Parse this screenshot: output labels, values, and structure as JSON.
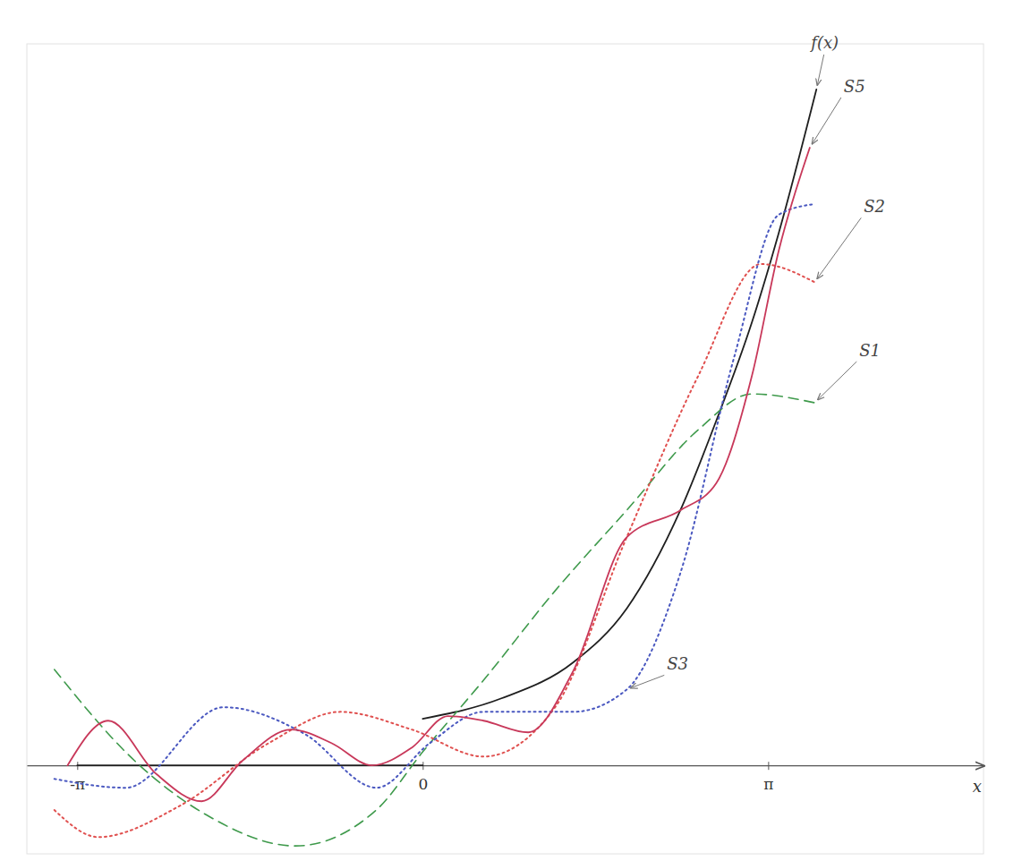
{
  "chart_data": {
    "type": "line",
    "x_label": "x",
    "xlim": [
      -3.6,
      5.1
    ],
    "xticks": [
      {
        "value": -3.14159,
        "label": "-π"
      },
      0,
      {
        "value": 3.14159,
        "label": "π"
      }
    ],
    "ylim": [
      -1.9,
      15.5
    ],
    "tick_labels": "x",
    "grid": false,
    "series": [
      {
        "name": "f(x)",
        "color": "#1f1f1f",
        "line_style": "solid",
        "x": [
          -3.14159,
          0,
          0,
          0,
          0.716,
          1.367,
          1.855,
          2.343,
          2.669,
          2.994,
          3.238,
          3.58
        ],
        "values": [
          0,
          0,
          null,
          1.0,
          1.44,
          2.21,
          3.37,
          5.48,
          7.4,
          9.52,
          11.44,
          14.52
        ]
      },
      {
        "name": "S1",
        "color": "#3f9a4c",
        "line_style": "dashed",
        "x": [
          -3.35,
          -2.62,
          -1.97,
          -1.155,
          -0.423,
          0,
          0.553,
          1.204,
          1.855,
          2.506,
          2.994,
          3.564
        ],
        "values": [
          2.06,
          0.1,
          -1.06,
          -1.73,
          -0.96,
          0.29,
          1.83,
          3.75,
          5.48,
          7.21,
          7.98,
          7.79
        ]
      },
      {
        "name": "S2",
        "color": "#e0504f",
        "line_style": "dotted",
        "x": [
          -3.35,
          -2.95,
          -2.21,
          -1.4,
          -0.75,
          -0.1,
          0.553,
          1.204,
          1.855,
          2.506,
          3.076,
          3.564
        ],
        "values": [
          -0.96,
          -1.54,
          -0.87,
          0.48,
          1.15,
          0.77,
          0.19,
          1.25,
          4.9,
          8.37,
          10.77,
          10.38
        ]
      },
      {
        "name": "S3",
        "color": "#4a58c0",
        "line_style": "dotted",
        "x": [
          -3.35,
          -2.7,
          -1.81,
          -1.07,
          -0.42,
          0.065,
          0.553,
          1.367,
          1.855,
          2.343,
          2.83,
          3.238,
          3.564
        ],
        "values": [
          -0.29,
          -0.48,
          1.25,
          0.67,
          -0.48,
          0.48,
          1.15,
          1.15,
          1.63,
          4.13,
          8.75,
          11.83,
          12.06
        ]
      },
      {
        "name": "S5",
        "color": "#c8385a",
        "line_style": "solid",
        "x": [
          -3.23,
          -2.86,
          -2.42,
          -2.01,
          -1.64,
          -1.196,
          -0.83,
          -0.46,
          -0.1,
          0.23,
          0.553,
          0.96,
          1.367,
          1.855,
          2.343,
          2.669,
          2.994,
          3.238,
          3.52
        ],
        "values": [
          0,
          0.96,
          -0.19,
          -0.77,
          0.1,
          0.77,
          0.48,
          0,
          0.38,
          1.06,
          0.96,
          0.71,
          2.02,
          4.9,
          5.48,
          6.06,
          8.37,
          11.06,
          13.27
        ]
      }
    ]
  }
}
